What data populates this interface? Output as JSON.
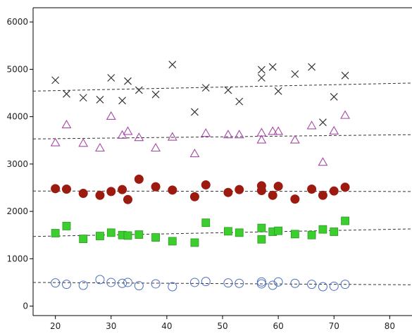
{
  "chart_data": {
    "type": "scatter",
    "xlim": [
      16,
      84
    ],
    "ylim": [
      -200,
      6300
    ],
    "x_ticks": [
      20,
      30,
      40,
      50,
      60,
      70,
      80
    ],
    "y_ticks": [
      0,
      1000,
      2000,
      3000,
      4000,
      5000,
      6000
    ],
    "x_tick_labels": [
      "20",
      "30",
      "40",
      "50",
      "60",
      "70",
      "80"
    ],
    "y_tick_labels": [
      "0",
      "1000",
      "2000",
      "3000",
      "4000",
      "5000",
      "6000"
    ],
    "grid": false,
    "series": [
      {
        "marker": "x",
        "color": "#333333",
        "fit": [
          [
            16,
            4540
          ],
          [
            84,
            4710
          ]
        ],
        "points": [
          [
            20,
            4770
          ],
          [
            22,
            4480
          ],
          [
            25,
            4400
          ],
          [
            28,
            4360
          ],
          [
            30,
            4820
          ],
          [
            32,
            4340
          ],
          [
            33,
            4750
          ],
          [
            35,
            4560
          ],
          [
            38,
            4470
          ],
          [
            41,
            5100
          ],
          [
            45,
            4100
          ],
          [
            47,
            4610
          ],
          [
            51,
            4560
          ],
          [
            53,
            4320
          ],
          [
            57,
            4990
          ],
          [
            57,
            4820
          ],
          [
            59,
            5050
          ],
          [
            60,
            4540
          ],
          [
            63,
            4900
          ],
          [
            66,
            5050
          ],
          [
            68,
            3880
          ],
          [
            70,
            4420
          ],
          [
            72,
            4870
          ]
        ]
      },
      {
        "marker": "triangle-open",
        "color": "#a54aa5",
        "fit": [
          [
            16,
            3530
          ],
          [
            84,
            3620
          ]
        ],
        "points": [
          [
            20,
            3450
          ],
          [
            22,
            3830
          ],
          [
            25,
            3440
          ],
          [
            28,
            3340
          ],
          [
            30,
            4010
          ],
          [
            32,
            3610
          ],
          [
            33,
            3690
          ],
          [
            35,
            3560
          ],
          [
            38,
            3340
          ],
          [
            41,
            3570
          ],
          [
            45,
            3220
          ],
          [
            47,
            3650
          ],
          [
            51,
            3620
          ],
          [
            53,
            3620
          ],
          [
            57,
            3660
          ],
          [
            57,
            3510
          ],
          [
            59,
            3690
          ],
          [
            60,
            3690
          ],
          [
            63,
            3510
          ],
          [
            66,
            3810
          ],
          [
            68,
            3040
          ],
          [
            70,
            3700
          ],
          [
            72,
            4030
          ]
        ]
      },
      {
        "marker": "circle-filled",
        "color": "#9c1a0f",
        "fit": [
          [
            16,
            2430
          ],
          [
            84,
            2420
          ]
        ],
        "points": [
          [
            20,
            2480
          ],
          [
            22,
            2470
          ],
          [
            25,
            2380
          ],
          [
            28,
            2340
          ],
          [
            30,
            2420
          ],
          [
            32,
            2460
          ],
          [
            33,
            2250
          ],
          [
            35,
            2680
          ],
          [
            38,
            2520
          ],
          [
            41,
            2450
          ],
          [
            45,
            2310
          ],
          [
            47,
            2560
          ],
          [
            51,
            2400
          ],
          [
            53,
            2460
          ],
          [
            57,
            2540
          ],
          [
            57,
            2440
          ],
          [
            59,
            2340
          ],
          [
            60,
            2530
          ],
          [
            63,
            2260
          ],
          [
            66,
            2470
          ],
          [
            68,
            2340
          ],
          [
            70,
            2430
          ],
          [
            72,
            2510
          ]
        ]
      },
      {
        "marker": "square-filled",
        "color": "#3ccd2e",
        "fit": [
          [
            16,
            1470
          ],
          [
            84,
            1630
          ]
        ],
        "points": [
          [
            20,
            1540
          ],
          [
            22,
            1690
          ],
          [
            25,
            1420
          ],
          [
            28,
            1480
          ],
          [
            30,
            1550
          ],
          [
            32,
            1500
          ],
          [
            33,
            1490
          ],
          [
            35,
            1510
          ],
          [
            38,
            1450
          ],
          [
            41,
            1370
          ],
          [
            45,
            1340
          ],
          [
            47,
            1760
          ],
          [
            51,
            1580
          ],
          [
            53,
            1550
          ],
          [
            57,
            1650
          ],
          [
            57,
            1410
          ],
          [
            59,
            1570
          ],
          [
            60,
            1590
          ],
          [
            63,
            1520
          ],
          [
            66,
            1500
          ],
          [
            68,
            1620
          ],
          [
            70,
            1570
          ],
          [
            72,
            1800
          ]
        ]
      },
      {
        "marker": "circle-open",
        "color": "#4a6bbf",
        "fit": [
          [
            16,
            500
          ],
          [
            84,
            450
          ]
        ],
        "points": [
          [
            20,
            490
          ],
          [
            22,
            460
          ],
          [
            25,
            440
          ],
          [
            28,
            560
          ],
          [
            30,
            500
          ],
          [
            32,
            480
          ],
          [
            33,
            500
          ],
          [
            35,
            430
          ],
          [
            38,
            470
          ],
          [
            41,
            410
          ],
          [
            45,
            500
          ],
          [
            47,
            520
          ],
          [
            51,
            490
          ],
          [
            53,
            480
          ],
          [
            57,
            510
          ],
          [
            57,
            470
          ],
          [
            59,
            440
          ],
          [
            60,
            510
          ],
          [
            63,
            480
          ],
          [
            66,
            460
          ],
          [
            68,
            410
          ],
          [
            70,
            420
          ],
          [
            72,
            460
          ]
        ]
      }
    ]
  }
}
